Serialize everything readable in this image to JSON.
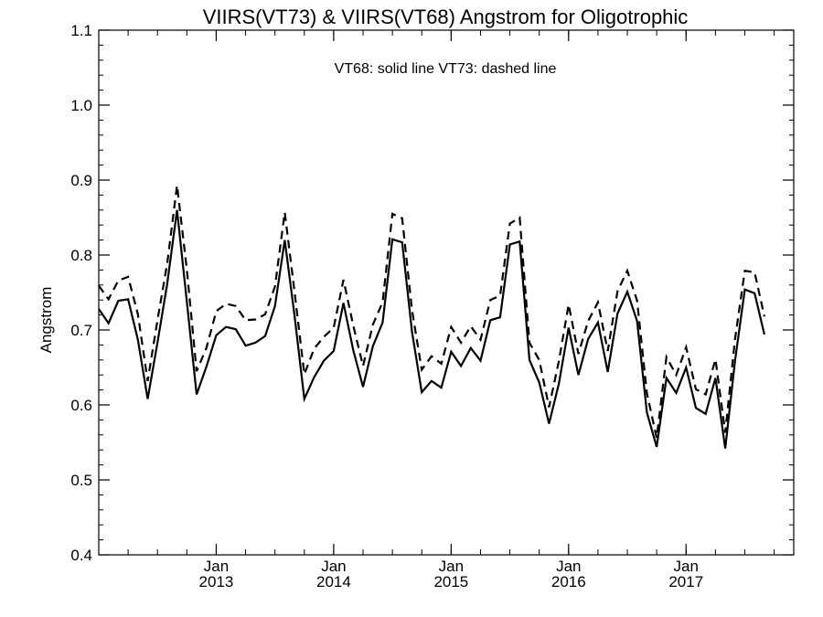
{
  "chart_data": {
    "type": "line",
    "title": "VIIRS(VT73) & VIIRS(VT68)  Angstrom for Oligotrophic",
    "annotation": "VT68: solid line   VT73: dashed line",
    "xlabel": "",
    "ylabel": "Angstrom",
    "ylim": [
      0.4,
      1.1
    ],
    "yticks": [
      "0.4",
      "0.5",
      "0.6",
      "0.7",
      "0.8",
      "0.9",
      "1.0",
      "1.1"
    ],
    "xlim": [
      "2012-01",
      "2017-12"
    ],
    "xticks": [
      {
        "month": "Jan",
        "year": "2013",
        "x": "2013-01"
      },
      {
        "month": "Jan",
        "year": "2014",
        "x": "2014-01"
      },
      {
        "month": "Jan",
        "year": "2015",
        "x": "2015-01"
      },
      {
        "month": "Jan",
        "year": "2016",
        "x": "2016-01"
      },
      {
        "month": "Jan",
        "year": "2017",
        "x": "2017-01"
      }
    ],
    "grid": false,
    "series": [
      {
        "name": "VT68",
        "style": "solid",
        "color": "#000000",
        "points": [
          [
            "2012-01",
            0.728
          ],
          [
            "2012-02",
            0.709
          ],
          [
            "2012-03",
            0.739
          ],
          [
            "2012-04",
            0.741
          ],
          [
            "2012-05",
            0.687
          ],
          [
            "2012-06",
            0.608
          ],
          [
            "2012-07",
            0.683
          ],
          [
            "2012-08",
            0.762
          ],
          [
            "2012-09",
            0.86
          ],
          [
            "2012-10",
            0.738
          ],
          [
            "2012-11",
            0.614
          ],
          [
            "2012-12",
            0.651
          ],
          [
            "2013-01",
            0.693
          ],
          [
            "2013-02",
            0.704
          ],
          [
            "2013-03",
            0.701
          ],
          [
            "2013-04",
            0.679
          ],
          [
            "2013-05",
            0.683
          ],
          [
            "2013-06",
            0.692
          ],
          [
            "2013-07",
            0.732
          ],
          [
            "2013-08",
            0.82
          ],
          [
            "2013-09",
            0.719
          ],
          [
            "2013-10",
            0.608
          ],
          [
            "2013-11",
            0.637
          ],
          [
            "2013-12",
            0.659
          ],
          [
            "2014-01",
            0.672
          ],
          [
            "2014-02",
            0.736
          ],
          [
            "2014-03",
            0.673
          ],
          [
            "2014-04",
            0.624
          ],
          [
            "2014-05",
            0.678
          ],
          [
            "2014-06",
            0.71
          ],
          [
            "2014-07",
            0.821
          ],
          [
            "2014-08",
            0.817
          ],
          [
            "2014-09",
            0.698
          ],
          [
            "2014-10",
            0.617
          ],
          [
            "2014-11",
            0.632
          ],
          [
            "2014-12",
            0.623
          ],
          [
            "2015-01",
            0.671
          ],
          [
            "2015-02",
            0.652
          ],
          [
            "2015-03",
            0.676
          ],
          [
            "2015-04",
            0.659
          ],
          [
            "2015-05",
            0.713
          ],
          [
            "2015-06",
            0.717
          ],
          [
            "2015-07",
            0.814
          ],
          [
            "2015-08",
            0.818
          ],
          [
            "2015-09",
            0.66
          ],
          [
            "2015-10",
            0.63
          ],
          [
            "2015-11",
            0.575
          ],
          [
            "2015-12",
            0.628
          ],
          [
            "2016-01",
            0.703
          ],
          [
            "2016-02",
            0.64
          ],
          [
            "2016-03",
            0.688
          ],
          [
            "2016-04",
            0.71
          ],
          [
            "2016-05",
            0.644
          ],
          [
            "2016-06",
            0.722
          ],
          [
            "2016-07",
            0.751
          ],
          [
            "2016-08",
            0.712
          ],
          [
            "2016-09",
            0.59
          ],
          [
            "2016-10",
            0.544
          ],
          [
            "2016-11",
            0.636
          ],
          [
            "2016-12",
            0.616
          ],
          [
            "2017-01",
            0.65
          ],
          [
            "2017-02",
            0.596
          ],
          [
            "2017-03",
            0.588
          ],
          [
            "2017-04",
            0.636
          ],
          [
            "2017-05",
            0.542
          ],
          [
            "2017-06",
            0.659
          ],
          [
            "2017-07",
            0.754
          ],
          [
            "2017-08",
            0.749
          ],
          [
            "2017-09",
            0.694
          ]
        ]
      },
      {
        "name": "VT73",
        "style": "dashed",
        "color": "#000000",
        "points": [
          [
            "2012-01",
            0.759
          ],
          [
            "2012-02",
            0.741
          ],
          [
            "2012-03",
            0.766
          ],
          [
            "2012-04",
            0.771
          ],
          [
            "2012-05",
            0.721
          ],
          [
            "2012-06",
            0.632
          ],
          [
            "2012-07",
            0.713
          ],
          [
            "2012-08",
            0.789
          ],
          [
            "2012-09",
            0.893
          ],
          [
            "2012-10",
            0.781
          ],
          [
            "2012-11",
            0.645
          ],
          [
            "2012-12",
            0.676
          ],
          [
            "2013-01",
            0.725
          ],
          [
            "2013-02",
            0.735
          ],
          [
            "2013-03",
            0.732
          ],
          [
            "2013-04",
            0.713
          ],
          [
            "2013-05",
            0.714
          ],
          [
            "2013-06",
            0.721
          ],
          [
            "2013-07",
            0.758
          ],
          [
            "2013-08",
            0.857
          ],
          [
            "2013-09",
            0.751
          ],
          [
            "2013-10",
            0.641
          ],
          [
            "2013-11",
            0.675
          ],
          [
            "2013-12",
            0.691
          ],
          [
            "2014-01",
            0.703
          ],
          [
            "2014-02",
            0.767
          ],
          [
            "2014-03",
            0.706
          ],
          [
            "2014-04",
            0.652
          ],
          [
            "2014-05",
            0.707
          ],
          [
            "2014-06",
            0.737
          ],
          [
            "2014-07",
            0.855
          ],
          [
            "2014-08",
            0.849
          ],
          [
            "2014-09",
            0.727
          ],
          [
            "2014-10",
            0.647
          ],
          [
            "2014-11",
            0.665
          ],
          [
            "2014-12",
            0.655
          ],
          [
            "2015-01",
            0.704
          ],
          [
            "2015-02",
            0.683
          ],
          [
            "2015-03",
            0.705
          ],
          [
            "2015-04",
            0.687
          ],
          [
            "2015-05",
            0.74
          ],
          [
            "2015-06",
            0.746
          ],
          [
            "2015-07",
            0.842
          ],
          [
            "2015-08",
            0.85
          ],
          [
            "2015-09",
            0.683
          ],
          [
            "2015-10",
            0.66
          ],
          [
            "2015-11",
            0.597
          ],
          [
            "2015-12",
            0.658
          ],
          [
            "2016-01",
            0.734
          ],
          [
            "2016-02",
            0.668
          ],
          [
            "2016-03",
            0.712
          ],
          [
            "2016-04",
            0.737
          ],
          [
            "2016-05",
            0.672
          ],
          [
            "2016-06",
            0.752
          ],
          [
            "2016-07",
            0.779
          ],
          [
            "2016-08",
            0.739
          ],
          [
            "2016-09",
            0.616
          ],
          [
            "2016-10",
            0.556
          ],
          [
            "2016-11",
            0.664
          ],
          [
            "2016-12",
            0.64
          ],
          [
            "2017-01",
            0.677
          ],
          [
            "2017-02",
            0.621
          ],
          [
            "2017-03",
            0.614
          ],
          [
            "2017-04",
            0.661
          ],
          [
            "2017-05",
            0.563
          ],
          [
            "2017-06",
            0.688
          ],
          [
            "2017-07",
            0.779
          ],
          [
            "2017-08",
            0.777
          ],
          [
            "2017-09",
            0.718
          ]
        ]
      }
    ]
  }
}
